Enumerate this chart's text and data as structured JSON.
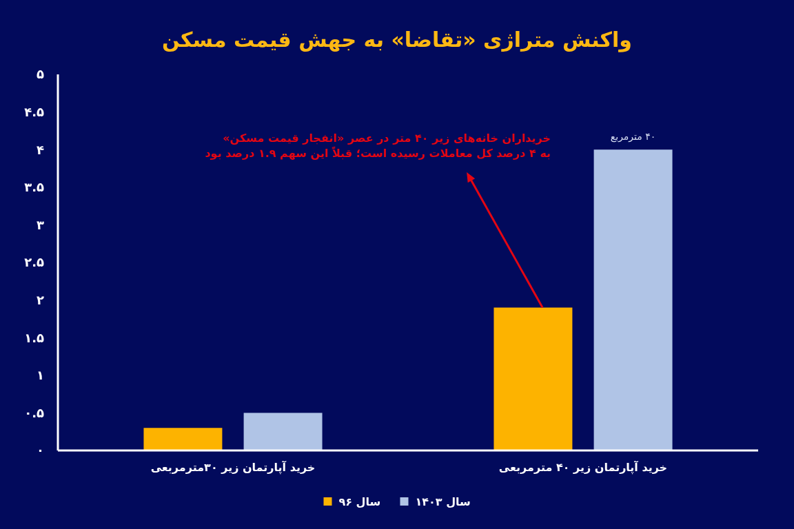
{
  "chart_data": {
    "type": "bar",
    "title": "واکنش متراژی «تقاضا» به جهش قیمت مسکن",
    "categories": [
      "خرید آپارتمان زیر ۳۰مترمربعی",
      "خرید آپارتمان زیر ۴۰ مترمربعی"
    ],
    "series": [
      {
        "name": "سال ۹۶",
        "color": "#fdb300",
        "values": [
          0.3,
          1.9
        ]
      },
      {
        "name": "سال ۱۴۰۳",
        "color": "#b0c4e6",
        "values": [
          0.5,
          4
        ]
      }
    ],
    "ylim": [
      0,
      5
    ],
    "yticks": [
      {
        "value": 0,
        "label": "۰"
      },
      {
        "value": 0.5,
        "label": "۰.۵"
      },
      {
        "value": 1,
        "label": "۱"
      },
      {
        "value": 1.5,
        "label": "۱.۵"
      },
      {
        "value": 2,
        "label": "۲"
      },
      {
        "value": 2.5,
        "label": "۲.۵"
      },
      {
        "value": 3,
        "label": "۳"
      },
      {
        "value": 3.5,
        "label": "۳.۵"
      },
      {
        "value": 4,
        "label": "۴"
      },
      {
        "value": 4.5,
        "label": "۴.۵"
      },
      {
        "value": 5,
        "label": "۵"
      }
    ],
    "legend": "bottom",
    "annotations": [
      "خریداران خانه‌های زیر ۴۰ متر در عصر «انفجار قیمت مسکن»\nبه ۴ درصد کل معاملات رسیده است؛ قبلاً این سهم ۱.۹ درصد بود",
      "۴۰ مترمربع"
    ]
  }
}
